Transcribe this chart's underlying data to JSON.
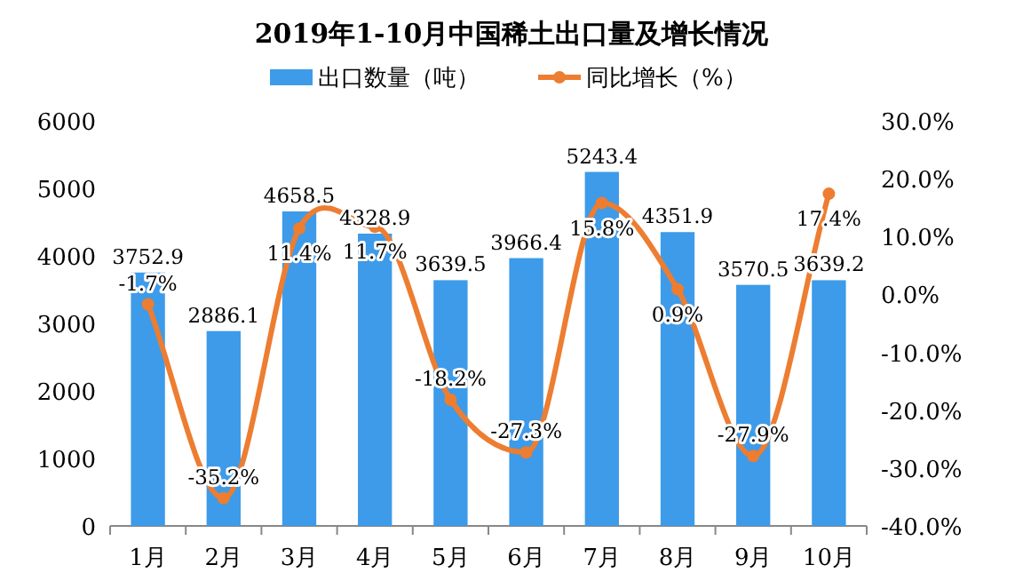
{
  "chart_data": {
    "type": "bar",
    "title": "2019年1-10月中国稀土出口量及增长情况",
    "categories": [
      "1月",
      "2月",
      "3月",
      "4月",
      "5月",
      "6月",
      "7月",
      "8月",
      "9月",
      "10月"
    ],
    "series": [
      {
        "name": "出口数量（吨）",
        "color": "#3d9be9",
        "values": [
          3752.9,
          2886.1,
          4658.5,
          4328.9,
          3639.5,
          3966.4,
          5243.4,
          4351.9,
          3570.5,
          3639.2
        ],
        "value_labels": [
          "3752.9",
          "2886.1",
          "4658.5",
          "4328.9",
          "3639.5",
          "3966.4",
          "5243.4",
          "4351.9",
          "3570.5",
          "3639.2"
        ]
      },
      {
        "name": "同比增长（%）",
        "type": "line",
        "axis": "y2",
        "color": "#ed7d31",
        "values": [
          -1.7,
          -35.2,
          11.4,
          11.7,
          -18.2,
          -27.3,
          15.8,
          0.9,
          -27.9,
          17.4
        ],
        "value_labels": [
          "-1.7%",
          "-35.2%",
          "11.4%",
          "11.7%",
          "-18.2%",
          "-27.3%",
          "15.8%",
          "0.9%",
          "-27.9%",
          "17.4%"
        ]
      }
    ],
    "ylim": [
      0,
      6000
    ],
    "yticks": [
      0,
      1000,
      2000,
      3000,
      4000,
      5000,
      6000
    ],
    "y2lim": [
      -40,
      30
    ],
    "y2ticks": [
      {
        "value": 30,
        "label": "30.0%"
      },
      {
        "value": 20,
        "label": "20.0%"
      },
      {
        "value": 10,
        "label": "10.0%"
      },
      {
        "value": 0,
        "label": "0.0%"
      },
      {
        "value": -10,
        "label": "-10.0%"
      },
      {
        "value": -20,
        "label": "-20.0%"
      },
      {
        "value": -30,
        "label": "-30.0%"
      },
      {
        "value": -40,
        "label": "-40.0%"
      }
    ],
    "legend": "top",
    "marker": "circle",
    "line_style": "solid",
    "grid": false
  }
}
